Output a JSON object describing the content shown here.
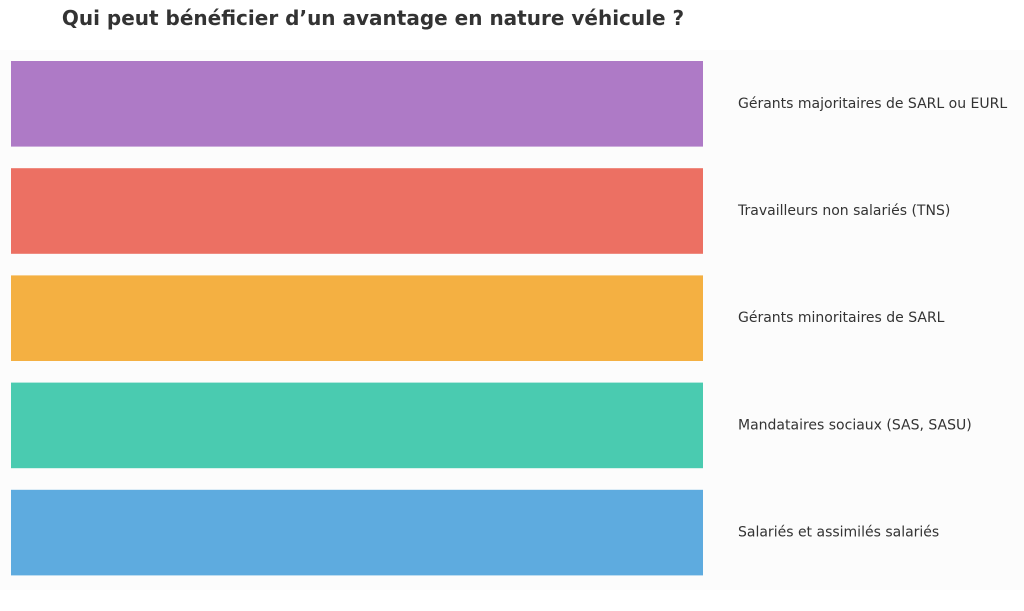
{
  "chart_data": {
    "type": "bar",
    "orientation": "horizontal",
    "title": "Qui peut bénéficier d’un avantage en nature véhicule ?",
    "xlabel": "",
    "ylabel": "",
    "categories": [
      "Gérants majoritaires de SARL ou EURL",
      "Travailleurs non salariés (TNS)",
      "Gérants minoritaires de SARL",
      "Mandataires sociaux (SAS, SASU)",
      "Salariés et assimilés salariés"
    ],
    "values": [
      1,
      1,
      1,
      1,
      1
    ],
    "colors": [
      "#ae7ac6",
      "#ec7063",
      "#f4b042",
      "#4acbb0",
      "#5eabdf"
    ],
    "xlim": [
      0,
      1
    ],
    "grid": false,
    "legend": "none"
  }
}
